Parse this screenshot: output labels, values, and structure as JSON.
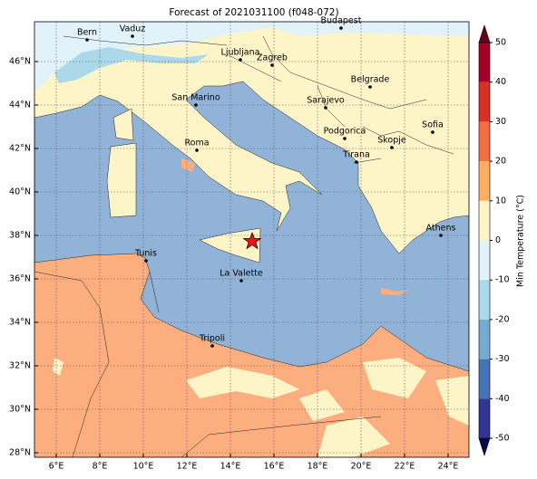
{
  "title": "Forecast of 2021031100 (f048-072)",
  "map": {
    "cities": [
      "Bern",
      "Vaduz",
      "Budapest",
      "Ljubljana",
      "Zagreb",
      "Belgrade",
      "San Marino",
      "Sarajevo",
      "Sofia",
      "Podgorica",
      "Skopje",
      "Roma",
      "Tirana",
      "Athens",
      "Tunis",
      "La Valette",
      "Tripoli"
    ],
    "x_tick_labels": [
      "6°E",
      "8°E",
      "10°E",
      "12°E",
      "14°E",
      "16°E",
      "18°E",
      "20°E",
      "22°E",
      "24°E"
    ],
    "y_tick_labels": [
      "46°N",
      "44°N",
      "42°N",
      "40°N",
      "38°N",
      "36°N",
      "34°N",
      "32°N",
      "30°N",
      "28°N"
    ]
  },
  "colorbar": {
    "label": "Min Temperature (°C)",
    "ticks": [
      50,
      40,
      30,
      20,
      10,
      0,
      -10,
      -20,
      -30,
      -40,
      -50
    ]
  }
}
